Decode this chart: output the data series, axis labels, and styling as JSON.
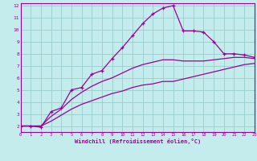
{
  "xlabel": "Windchill (Refroidissement éolien,°C)",
  "bg_color": "#c4ecec",
  "line_color": "#990099",
  "grid_color": "#99cccc",
  "xmin": 0,
  "xmax": 23,
  "ymin": 1.5,
  "ymax": 12.2,
  "yticks": [
    2,
    3,
    4,
    5,
    6,
    7,
    8,
    9,
    10,
    11,
    12
  ],
  "xticks": [
    0,
    1,
    2,
    3,
    4,
    5,
    6,
    7,
    8,
    9,
    10,
    11,
    12,
    13,
    14,
    15,
    16,
    17,
    18,
    19,
    20,
    21,
    22,
    23
  ],
  "s1_x": [
    0,
    1,
    2,
    3,
    4,
    5,
    6,
    7,
    8,
    9,
    10,
    11,
    12,
    13,
    14,
    15,
    16,
    17,
    18,
    19,
    20,
    21,
    22,
    23
  ],
  "s1_y": [
    2.0,
    2.0,
    1.9,
    3.2,
    3.5,
    5.0,
    5.2,
    6.3,
    6.6,
    7.6,
    8.5,
    9.5,
    10.5,
    11.3,
    11.8,
    12.0,
    9.9,
    9.9,
    9.8,
    9.0,
    8.0,
    8.0,
    7.9,
    7.7
  ],
  "s2_x": [
    0,
    1,
    2,
    3,
    4,
    5,
    6,
    7,
    8,
    9,
    10,
    11,
    12,
    13,
    14,
    15,
    16,
    17,
    18,
    19,
    20,
    21,
    22,
    23
  ],
  "s2_y": [
    2.0,
    2.0,
    2.0,
    2.8,
    3.4,
    4.2,
    4.8,
    5.3,
    5.7,
    6.0,
    6.4,
    6.8,
    7.1,
    7.3,
    7.5,
    7.5,
    7.4,
    7.4,
    7.4,
    7.5,
    7.6,
    7.7,
    7.7,
    7.6
  ],
  "s3_x": [
    0,
    1,
    2,
    3,
    4,
    5,
    6,
    7,
    8,
    9,
    10,
    11,
    12,
    13,
    14,
    15,
    16,
    17,
    18,
    19,
    20,
    21,
    22,
    23
  ],
  "s3_y": [
    2.0,
    2.0,
    2.0,
    2.4,
    2.9,
    3.4,
    3.8,
    4.1,
    4.4,
    4.7,
    4.9,
    5.2,
    5.4,
    5.5,
    5.7,
    5.7,
    5.9,
    6.1,
    6.3,
    6.5,
    6.7,
    6.9,
    7.1,
    7.2
  ]
}
